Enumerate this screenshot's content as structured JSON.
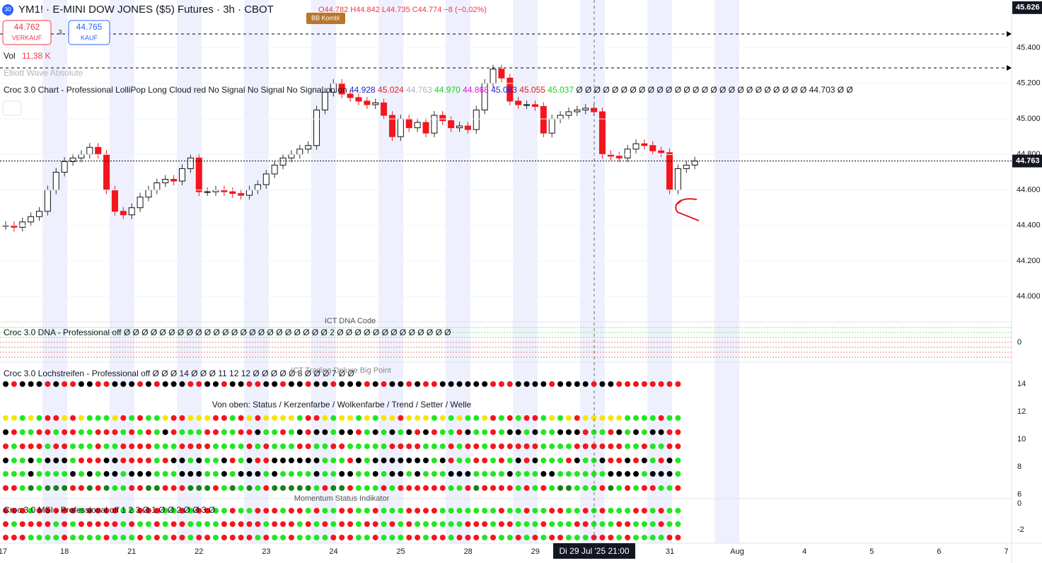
{
  "header": {
    "badge": "30",
    "symbol": "YM1! · E-MINI DOW JONES ($5) Futures · 3h · CBOT",
    "ohlc": "O44.782 H44.842 L44.735 C44.774 −8 (−0,02%)"
  },
  "trade": {
    "sell_price": "44.762",
    "sell_label": "VERKAUF",
    "spread": "3",
    "buy_price": "44.765",
    "buy_label": "KAUF"
  },
  "volume": {
    "label": "Vol",
    "value": "11,38 K"
  },
  "overlays": {
    "bb": "BB Kombi",
    "elliott": "Elliott Wave Absolute"
  },
  "croc_chart": {
    "label": "Croc 3.0 Chart - Professional LolliPop Long Cloud red No Signal No Signal No Signal on on",
    "values": [
      {
        "text": "44.928",
        "color": "#1e22d6"
      },
      {
        "text": "45.024",
        "color": "#e01b24"
      },
      {
        "text": "44.763",
        "color": "#b0b3bb"
      },
      {
        "text": "44.970",
        "color": "#22c922"
      },
      {
        "text": "44.868",
        "color": "#d61ad6"
      },
      {
        "text": "45.083",
        "color": "#1e22d6"
      },
      {
        "text": "45.055",
        "color": "#e01b24"
      },
      {
        "text": "45.037",
        "color": "#22c922"
      }
    ],
    "tail": "Ø Ø Ø Ø Ø Ø Ø Ø Ø Ø Ø Ø Ø Ø Ø Ø Ø Ø Ø Ø Ø Ø Ø Ø Ø Ø 44.703 Ø Ø"
  },
  "price_axis": {
    "ylim": [
      43858,
      45669
    ],
    "ticks": [
      {
        "value": 44000,
        "label": "44.000"
      },
      {
        "value": 44200,
        "label": "44.200"
      },
      {
        "value": 44400,
        "label": "44.400"
      },
      {
        "value": 44600,
        "label": "44.600"
      },
      {
        "value": 44800,
        "label": "44.800"
      },
      {
        "value": 45000,
        "label": "45.000"
      },
      {
        "value": 45200,
        "label": "45.200"
      },
      {
        "value": 45400,
        "label": "45.400"
      }
    ],
    "last_price": {
      "value": 44763,
      "label": "44.763"
    },
    "top_price": {
      "value": 45626,
      "label": "45.626"
    }
  },
  "closes": [
    44400,
    44390,
    44420,
    44450,
    44480,
    44600,
    44700,
    44760,
    44780,
    44800,
    44840,
    44800,
    44600,
    44480,
    44460,
    44500,
    44560,
    44600,
    44640,
    44660,
    44650,
    44720,
    44780,
    44590,
    44590,
    44600,
    44590,
    44580,
    44570,
    44600,
    44630,
    44690,
    44740,
    44780,
    44800,
    44830,
    44850,
    45050,
    45150,
    45200,
    45140,
    45120,
    45100,
    45080,
    45090,
    45020,
    44900,
    45000,
    44950,
    44980,
    44920,
    45020,
    44990,
    44950,
    44960,
    44940,
    45050,
    45200,
    45280,
    45230,
    45100,
    45080,
    45080,
    45070,
    44920,
    45000,
    45020,
    45040,
    45050,
    45060,
    45040,
    44800,
    44790,
    44780,
    44830,
    44860,
    44850,
    44820,
    44810,
    44600,
    44720,
    44740,
    44763
  ],
  "panels": {
    "dna": {
      "label": "Croc 3.0 DNA - Professional off  Ø Ø Ø Ø Ø Ø Ø Ø Ø Ø Ø Ø Ø Ø Ø Ø Ø Ø Ø Ø Ø Ø Ø 2 Ø Ø Ø Ø Ø Ø Ø Ø Ø Ø Ø Ø Ø",
      "title": "ICT DNA Code",
      "ticks": [
        0
      ]
    },
    "loch": {
      "label": "Croc 3.0 Lochstreifen - Professional off  Ø Ø Ø 14 Ø Ø Ø 11 12 12 Ø Ø Ø Ø Ø 8 Ø Ø Ø 7 Ø Ø",
      "title": "ICT Trading Deluxe Big Point",
      "legend": "Von oben: Status / Kerzenfarbe / Wolkenfarbe / Trend / Setter / Welle",
      "ticks": [
        14,
        12,
        10,
        8,
        6
      ]
    },
    "msi": {
      "label": "Croc 3.0 MSI - Professional off  1 2 3 Ø 1 Ø Ø 2 Ø Ø 3 Ø",
      "title": "Momentum Status Indikator",
      "ticks": [
        0,
        -2
      ]
    }
  },
  "time_axis": {
    "labels": [
      "17",
      "18",
      "21",
      "22",
      "23",
      "24",
      "25",
      "28",
      "29",
      "31",
      "Aug",
      "4",
      "5",
      "6",
      "7"
    ],
    "crosshair": "Di 29 Jul '25   21:00"
  }
}
